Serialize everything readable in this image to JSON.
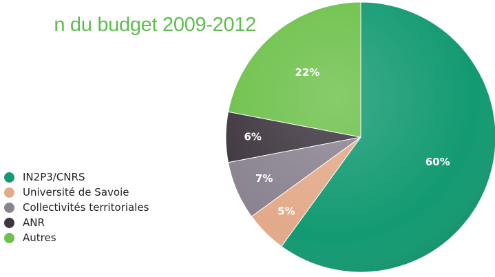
{
  "title": "n du budget 2009-2012",
  "chart_data": {
    "type": "pie",
    "slices": [
      {
        "label": "IN2P3/CNRS",
        "value": 60,
        "display": "60%",
        "color": "#139a72"
      },
      {
        "label": "Université de Savoie",
        "value": 5,
        "display": "5%",
        "color": "#e3aa8a"
      },
      {
        "label": "Collectivités territoriales",
        "value": 7,
        "display": "7%",
        "color": "#8a8390"
      },
      {
        "label": "ANR",
        "value": 6,
        "display": "6%",
        "color": "#3f363f"
      },
      {
        "label": "Autres",
        "value": 22,
        "display": "22%",
        "color": "#6dc14a"
      }
    ],
    "legend_position": "left"
  }
}
